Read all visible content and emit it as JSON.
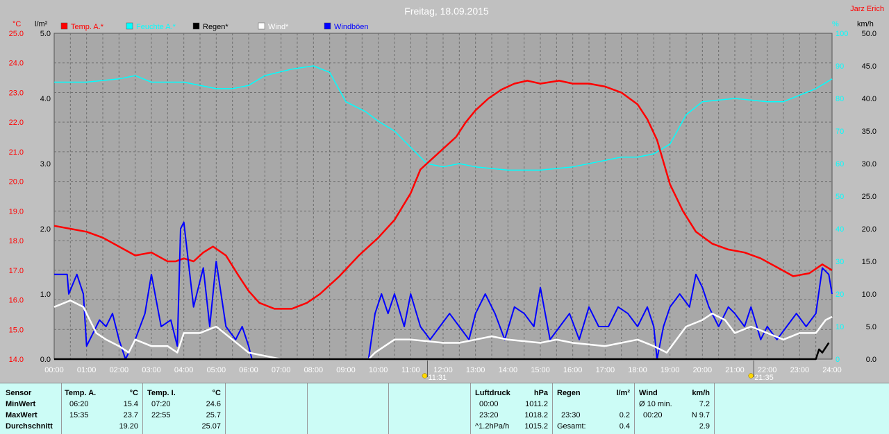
{
  "chart_data": {
    "type": "line",
    "title": "Freitag, 18.09.2015",
    "author": "Jarz Erich",
    "x_ticks": [
      "00:00",
      "01:00",
      "02:00",
      "03:00",
      "04:00",
      "05:00",
      "06:00",
      "07:00",
      "08:00",
      "09:00",
      "10:00",
      "11:00",
      "12:00",
      "13:00",
      "14:00",
      "15:00",
      "16:00",
      "17:00",
      "18:00",
      "19:00",
      "20:00",
      "21:00",
      "22:00",
      "23:00",
      "24:00"
    ],
    "sunrise": "11:31",
    "sunset": "21:35",
    "axes": {
      "temp": {
        "unit": "°C",
        "min": 14.0,
        "max": 25.0,
        "ticks": [
          "25.0",
          "24.0",
          "23.0",
          "22.0",
          "21.0",
          "20.0",
          "19.0",
          "18.0",
          "17.0",
          "16.0",
          "15.0",
          "14.0"
        ],
        "color": "#ff0000"
      },
      "rain": {
        "unit": "l/m²",
        "min": 0.0,
        "max": 5.0,
        "ticks": [
          "5.0",
          "4.0",
          "3.0",
          "2.0",
          "1.0",
          "0.0"
        ],
        "color": "#000000"
      },
      "humidity": {
        "unit": "%",
        "min": 0,
        "max": 100,
        "ticks": [
          "100",
          "90",
          "80",
          "70",
          "60",
          "50",
          "40",
          "30",
          "20",
          "10",
          "0"
        ],
        "color": "#00ffff"
      },
      "wind": {
        "unit": "km/h",
        "min": 0.0,
        "max": 50.0,
        "ticks": [
          "50.0",
          "45.0",
          "40.0",
          "35.0",
          "30.0",
          "25.0",
          "20.0",
          "15.0",
          "10.0",
          "5.0",
          "0.0"
        ],
        "color": "#000000"
      }
    },
    "legend": [
      {
        "name": "Temp. A.*",
        "color": "#ff0000"
      },
      {
        "name": "Feuchte A.*",
        "color": "#00ffff"
      },
      {
        "name": "Regen*",
        "color": "#000000"
      },
      {
        "name": "Wind*",
        "color": "#ffffff"
      },
      {
        "name": "Windböen",
        "color": "#0000ff"
      }
    ],
    "series": [
      {
        "name": "Temp. A.*",
        "axis": "temp",
        "color": "#ff0000",
        "x": [
          0,
          0.5,
          1,
          1.5,
          2,
          2.5,
          3,
          3.5,
          3.75,
          4,
          4.3,
          4.6,
          4.9,
          5.3,
          5.7,
          6,
          6.33,
          6.8,
          7.33,
          7.8,
          8.2,
          8.8,
          9.4,
          10,
          10.5,
          11,
          11.3,
          11.6,
          12,
          12.4,
          12.7,
          13,
          13.4,
          13.8,
          14.2,
          14.6,
          15,
          15.58,
          16,
          16.5,
          17,
          17.5,
          18,
          18.3,
          18.6,
          19,
          19.4,
          19.8,
          20.3,
          20.8,
          21.3,
          21.8,
          22.3,
          22.8,
          23.3,
          23.7,
          24
        ],
        "y": [
          18.5,
          18.4,
          18.3,
          18.1,
          17.8,
          17.5,
          17.6,
          17.3,
          17.3,
          17.4,
          17.3,
          17.6,
          17.8,
          17.5,
          16.8,
          16.3,
          15.9,
          15.7,
          15.7,
          15.9,
          16.2,
          16.8,
          17.5,
          18.1,
          18.7,
          19.6,
          20.4,
          20.7,
          21.1,
          21.5,
          22.0,
          22.4,
          22.8,
          23.1,
          23.3,
          23.4,
          23.3,
          23.4,
          23.3,
          23.3,
          23.2,
          23.0,
          22.6,
          22.1,
          21.4,
          19.9,
          19.0,
          18.3,
          17.9,
          17.7,
          17.6,
          17.4,
          17.1,
          16.8,
          16.9,
          17.2,
          17.0
        ]
      },
      {
        "name": "Feuchte A.*",
        "axis": "humidity",
        "color": "#00ffff",
        "x": [
          0,
          1,
          2,
          2.5,
          3,
          4,
          5,
          5.5,
          6,
          6.5,
          7.33,
          8,
          8.5,
          9,
          9.6,
          10,
          10.5,
          11,
          11.5,
          12,
          12.5,
          13,
          14,
          15,
          16,
          17,
          17.5,
          18,
          18.5,
          19,
          19.5,
          20,
          21,
          22,
          22.5,
          23,
          23.5,
          24
        ],
        "y": [
          85,
          85,
          86,
          87,
          85,
          85,
          83,
          83,
          84,
          87,
          89,
          90,
          88,
          79,
          76,
          73,
          70,
          65,
          60,
          59,
          60,
          59,
          58,
          58,
          59,
          61,
          62,
          62,
          63,
          66,
          75,
          79,
          80,
          79,
          79,
          81,
          83,
          86
        ]
      },
      {
        "name": "Regen*",
        "axis": "rain",
        "color": "#000000",
        "x": [
          0,
          23.5,
          23.6,
          23.7,
          23.9
        ],
        "y": [
          0,
          0,
          0.15,
          0.1,
          0.25
        ]
      },
      {
        "name": "Wind*",
        "axis": "wind",
        "color": "#ffffff",
        "x": [
          0,
          0.5,
          0.9,
          1.1,
          1.3,
          1.6,
          2,
          2.3,
          2.5,
          3,
          3.5,
          3.8,
          4,
          4.5,
          5,
          5.5,
          6,
          6.5,
          7,
          9.7,
          9.9,
          10.2,
          10.5,
          11,
          12,
          12.5,
          13,
          13.5,
          14,
          15,
          15.5,
          16,
          17,
          18,
          18.5,
          18.9,
          19.2,
          19.5,
          20,
          20.3,
          20.7,
          21,
          21.5,
          22,
          22.5,
          23,
          23.5,
          23.8,
          24
        ],
        "y": [
          8,
          9,
          8,
          6,
          4,
          3,
          2,
          1,
          3,
          2,
          2,
          1,
          4,
          4,
          5,
          3,
          1,
          0.5,
          0,
          0,
          1,
          2,
          3,
          3,
          2.5,
          2.5,
          3,
          3.5,
          3,
          2.5,
          3,
          2.5,
          2,
          3,
          2,
          1,
          3,
          5,
          6,
          7,
          6,
          4,
          5,
          4,
          3,
          4,
          4,
          6,
          6.5
        ]
      },
      {
        "name": "Windböen",
        "axis": "wind",
        "color": "#0000ff",
        "x": [
          0,
          0.4,
          0.45,
          0.7,
          0.9,
          1.0,
          1.2,
          1.4,
          1.6,
          1.8,
          2.0,
          2.2,
          2.5,
          2.8,
          3.0,
          3.3,
          3.6,
          3.8,
          3.9,
          4.0,
          4.3,
          4.4,
          4.6,
          4.8,
          5.0,
          5.3,
          5.6,
          5.8,
          6.0,
          6.1,
          7.0,
          9.7,
          9.9,
          10.1,
          10.3,
          10.5,
          10.8,
          11.0,
          11.3,
          11.6,
          11.9,
          12.2,
          12.5,
          12.8,
          13.0,
          13.3,
          13.6,
          13.9,
          14.2,
          14.5,
          14.8,
          15.0,
          15.3,
          15.6,
          15.9,
          16.2,
          16.5,
          16.8,
          17.1,
          17.4,
          17.7,
          18.0,
          18.3,
          18.5,
          18.6,
          18.8,
          19.0,
          19.3,
          19.6,
          19.8,
          20.0,
          20.2,
          20.5,
          20.8,
          21.0,
          21.3,
          21.5,
          21.8,
          22.0,
          22.3,
          22.6,
          22.9,
          23.2,
          23.5,
          23.7,
          23.9,
          24.0
        ],
        "y": [
          13,
          13,
          10,
          13,
          10,
          2,
          4,
          6,
          5,
          7,
          3,
          0,
          3,
          7,
          13,
          5,
          6,
          2,
          20,
          21,
          8,
          10,
          14,
          5,
          15,
          5,
          3,
          5,
          2,
          0,
          0,
          0,
          7,
          10,
          7,
          10,
          5,
          10,
          5,
          3,
          5,
          7,
          5,
          3,
          7,
          10,
          7,
          3,
          8,
          7,
          5,
          11,
          3,
          5,
          7,
          3,
          8,
          5,
          5,
          8,
          7,
          5,
          8,
          5,
          0,
          5,
          8,
          10,
          8,
          13,
          11,
          8,
          5,
          8,
          7,
          5,
          8,
          3,
          5,
          3,
          5,
          7,
          5,
          7,
          14,
          13,
          10
        ]
      }
    ]
  },
  "stats": {
    "sensor": {
      "header": "Sensor",
      "rows": [
        "MinWert",
        "MaxWert",
        "Durchschnitt"
      ]
    },
    "temp_a": {
      "header": "Temp. A.",
      "unit": "°C",
      "min_time": "06:20",
      "min_val": "15.4",
      "max_time": "15:35",
      "max_val": "23.7",
      "avg": "19.20"
    },
    "temp_i": {
      "header": "Temp. I.",
      "unit": "°C",
      "min_time": "07:20",
      "min_val": "24.6",
      "max_time": "22:55",
      "max_val": "25.7",
      "avg": "25.07"
    },
    "pressure": {
      "header": "Luftdruck",
      "unit": "hPa",
      "min_time": "00:00",
      "min_val": "1011.2",
      "max_time": "23:20",
      "max_val": "1018.2",
      "trend": "^1.2hPa/h",
      "avg": "1015.2"
    },
    "rain": {
      "header": "Regen",
      "unit": "l/m²",
      "t1": "23:30",
      "v1": "0.2",
      "total_label": "Gesamt:",
      "total": "0.4"
    },
    "wind": {
      "header": "Wind",
      "unit": "km/h",
      "avg_label": "Ø 10 min.",
      "avg_val": "7.2",
      "gust_time": "00:20",
      "gust_val": "N 9.7",
      "v3": "2.9"
    }
  }
}
